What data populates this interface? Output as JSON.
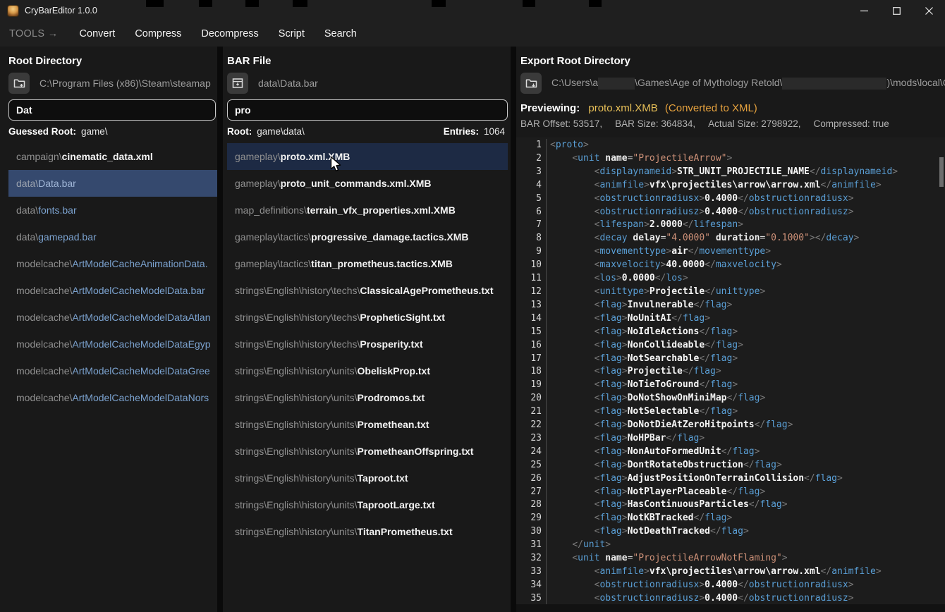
{
  "window": {
    "title": "CryBarEditor 1.0.0",
    "controls": {
      "minimize": "minimize",
      "maximize": "maximize",
      "close": "close"
    }
  },
  "menu": {
    "tools_label": "TOOLS →",
    "items": [
      "Convert",
      "Compress",
      "Decompress",
      "Script",
      "Search"
    ]
  },
  "root_panel": {
    "title": "Root Directory",
    "path": "C:\\Program Files (x86)\\Steam\\steamap",
    "search_value": "Dat",
    "guessed_root_label": "Guessed Root:",
    "guessed_root_value": "game\\",
    "files": [
      {
        "prefix": "campaign\\",
        "name": "cinematic_data.xml",
        "type": "file"
      },
      {
        "prefix": "data\\",
        "name": "Data.bar",
        "type": "bar",
        "selected": true
      },
      {
        "prefix": "data\\",
        "name": "fonts.bar",
        "type": "bar"
      },
      {
        "prefix": "data\\",
        "name": "gamepad.bar",
        "type": "bar"
      },
      {
        "prefix": "modelcache\\",
        "name": "ArtModelCacheAnimationData.",
        "type": "bar"
      },
      {
        "prefix": "modelcache\\",
        "name": "ArtModelCacheModelData.bar",
        "type": "bar"
      },
      {
        "prefix": "modelcache\\",
        "name": "ArtModelCacheModelDataAtlan",
        "type": "bar"
      },
      {
        "prefix": "modelcache\\",
        "name": "ArtModelCacheModelDataEgyp",
        "type": "bar"
      },
      {
        "prefix": "modelcache\\",
        "name": "ArtModelCacheModelDataGree",
        "type": "bar"
      },
      {
        "prefix": "modelcache\\",
        "name": "ArtModelCacheModelDataNors",
        "type": "bar"
      }
    ]
  },
  "bar_panel": {
    "title": "BAR File",
    "path": "data\\Data.bar",
    "search_value": "pro",
    "root_label": "Root:",
    "root_value": "game\\data\\",
    "entries_label": "Entries:",
    "entries_value": "1064",
    "files": [
      {
        "prefix": "gameplay\\",
        "name": "proto.xml.XMB",
        "type": "file",
        "selected": true
      },
      {
        "prefix": "gameplay\\",
        "name": "proto_unit_commands.xml.XMB",
        "type": "file"
      },
      {
        "prefix": "map_definitions\\",
        "name": "terrain_vfx_properties.xml.XMB",
        "type": "file"
      },
      {
        "prefix": "gameplay\\tactics\\",
        "name": "progressive_damage.tactics.XMB",
        "type": "file"
      },
      {
        "prefix": "gameplay\\tactics\\",
        "name": "titan_prometheus.tactics.XMB",
        "type": "file"
      },
      {
        "prefix": "strings\\English\\history\\techs\\",
        "name": "ClassicalAgePrometheus.txt",
        "type": "file"
      },
      {
        "prefix": "strings\\English\\history\\techs\\",
        "name": "PropheticSight.txt",
        "type": "file"
      },
      {
        "prefix": "strings\\English\\history\\techs\\",
        "name": "Prosperity.txt",
        "type": "file"
      },
      {
        "prefix": "strings\\English\\history\\units\\",
        "name": "ObeliskProp.txt",
        "type": "file"
      },
      {
        "prefix": "strings\\English\\history\\units\\",
        "name": "Prodromos.txt",
        "type": "file"
      },
      {
        "prefix": "strings\\English\\history\\units\\",
        "name": "Promethean.txt",
        "type": "file"
      },
      {
        "prefix": "strings\\English\\history\\units\\",
        "name": "PrometheanOffspring.txt",
        "type": "file"
      },
      {
        "prefix": "strings\\English\\history\\units\\",
        "name": "Taproot.txt",
        "type": "file"
      },
      {
        "prefix": "strings\\English\\history\\units\\",
        "name": "TaprootLarge.txt",
        "type": "file"
      },
      {
        "prefix": "strings\\English\\history\\units\\",
        "name": "TitanPrometheus.txt",
        "type": "file"
      }
    ]
  },
  "export_panel": {
    "title": "Export Root Directory",
    "path_segments": [
      {
        "text": "C:\\Users\\a"
      },
      {
        "redacted_width": 52
      },
      {
        "text": "\\Games\\Age of Mythology Retold\\"
      },
      {
        "redacted_width": 148
      },
      {
        "text": ")\\mods\\local\\Ce"
      }
    ],
    "previewing_label": "Previewing:",
    "previewing_file": "proto.xml.XMB",
    "previewing_note": "(Converted to XML)",
    "stats": [
      "BAR Offset: 53517,",
      "BAR Size: 364834,",
      "Actual Size: 2798922,",
      "Compressed: true"
    ]
  },
  "colors": {
    "selected_root_row": "#35496e",
    "selected_bar_row": "#1d2a44",
    "bar_filename": "#7ba2cf",
    "preview_file": "#e9c158",
    "preview_note": "#e6a23e",
    "code_tag": "#5a9fd6",
    "code_value": "#ce9178",
    "code_punct": "#7a7a7a"
  },
  "code": {
    "lines": [
      {
        "ind": 0,
        "kind": "open",
        "tag": "proto"
      },
      {
        "ind": 1,
        "kind": "openattr",
        "tag": "unit",
        "attrs": [
          [
            "name",
            "ProjectileArrow"
          ]
        ]
      },
      {
        "ind": 2,
        "kind": "elem",
        "tag": "displaynameid",
        "text": "STR_UNIT_PROJECTILE_NAME"
      },
      {
        "ind": 2,
        "kind": "elem",
        "tag": "animfile",
        "text": "vfx\\projectiles\\arrow\\arrow.xml"
      },
      {
        "ind": 2,
        "kind": "elem",
        "tag": "obstructionradiusx",
        "text": "0.4000"
      },
      {
        "ind": 2,
        "kind": "elem",
        "tag": "obstructionradiusz",
        "text": "0.4000"
      },
      {
        "ind": 2,
        "kind": "elem",
        "tag": "lifespan",
        "text": "2.0000"
      },
      {
        "ind": 2,
        "kind": "emptyattr",
        "tag": "decay",
        "attrs": [
          [
            "delay",
            "4.0000"
          ],
          [
            "duration",
            "0.1000"
          ]
        ]
      },
      {
        "ind": 2,
        "kind": "elem",
        "tag": "movementtype",
        "text": "air"
      },
      {
        "ind": 2,
        "kind": "elem",
        "tag": "maxvelocity",
        "text": "40.0000"
      },
      {
        "ind": 2,
        "kind": "elem",
        "tag": "los",
        "text": "0.0000"
      },
      {
        "ind": 2,
        "kind": "elem",
        "tag": "unittype",
        "text": "Projectile"
      },
      {
        "ind": 2,
        "kind": "elem",
        "tag": "flag",
        "text": "Invulnerable"
      },
      {
        "ind": 2,
        "kind": "elem",
        "tag": "flag",
        "text": "NoUnitAI"
      },
      {
        "ind": 2,
        "kind": "elem",
        "tag": "flag",
        "text": "NoIdleActions"
      },
      {
        "ind": 2,
        "kind": "elem",
        "tag": "flag",
        "text": "NonCollideable"
      },
      {
        "ind": 2,
        "kind": "elem",
        "tag": "flag",
        "text": "NotSearchable"
      },
      {
        "ind": 2,
        "kind": "elem",
        "tag": "flag",
        "text": "Projectile"
      },
      {
        "ind": 2,
        "kind": "elem",
        "tag": "flag",
        "text": "NoTieToGround"
      },
      {
        "ind": 2,
        "kind": "elem",
        "tag": "flag",
        "text": "DoNotShowOnMiniMap"
      },
      {
        "ind": 2,
        "kind": "elem",
        "tag": "flag",
        "text": "NotSelectable"
      },
      {
        "ind": 2,
        "kind": "elem",
        "tag": "flag",
        "text": "DoNotDieAtZeroHitpoints"
      },
      {
        "ind": 2,
        "kind": "elem",
        "tag": "flag",
        "text": "NoHPBar"
      },
      {
        "ind": 2,
        "kind": "elem",
        "tag": "flag",
        "text": "NonAutoFormedUnit"
      },
      {
        "ind": 2,
        "kind": "elem",
        "tag": "flag",
        "text": "DontRotateObstruction"
      },
      {
        "ind": 2,
        "kind": "elem",
        "tag": "flag",
        "text": "AdjustPositionOnTerrainCollision"
      },
      {
        "ind": 2,
        "kind": "elem",
        "tag": "flag",
        "text": "NotPlayerPlaceable"
      },
      {
        "ind": 2,
        "kind": "elem",
        "tag": "flag",
        "text": "HasContinuousParticles"
      },
      {
        "ind": 2,
        "kind": "elem",
        "tag": "flag",
        "text": "NotKBTracked"
      },
      {
        "ind": 2,
        "kind": "elem",
        "tag": "flag",
        "text": "NotDeathTracked"
      },
      {
        "ind": 1,
        "kind": "close",
        "tag": "unit"
      },
      {
        "ind": 1,
        "kind": "openattr",
        "tag": "unit",
        "attrs": [
          [
            "name",
            "ProjectileArrowNotFlaming"
          ]
        ]
      },
      {
        "ind": 2,
        "kind": "elem",
        "tag": "animfile",
        "text": "vfx\\projectiles\\arrow\\arrow.xml"
      },
      {
        "ind": 2,
        "kind": "elem",
        "tag": "obstructionradiusx",
        "text": "0.4000"
      },
      {
        "ind": 2,
        "kind": "elem",
        "tag": "obstructionradiusz",
        "text": "0.4000"
      }
    ]
  }
}
